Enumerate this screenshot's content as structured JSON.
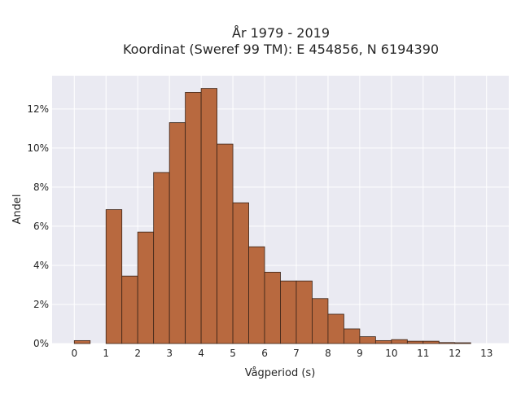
{
  "chart_data": {
    "type": "bar",
    "title": "År 1979 - 2019",
    "subtitle": "Koordinat (Sweref 99 TM): E 454856, N 6194390",
    "xlabel": "Vågperiod (s)",
    "ylabel": "Andel",
    "bin_width": 0.5,
    "x": [
      0,
      1,
      1.5,
      2,
      2.5,
      3,
      3.5,
      4,
      4.5,
      5,
      5.5,
      6,
      6.5,
      7,
      7.5,
      8,
      8.5,
      9,
      9.5,
      10,
      10.5,
      11,
      11.5,
      12
    ],
    "values": [
      0.15,
      6.85,
      3.45,
      5.7,
      8.75,
      11.3,
      12.85,
      13.05,
      10.2,
      7.2,
      4.95,
      3.65,
      3.2,
      3.2,
      2.3,
      1.5,
      0.75,
      0.35,
      0.15,
      0.2,
      0.12,
      0.12,
      0.05,
      0.04
    ],
    "xticks": [
      "0",
      "1",
      "2",
      "3",
      "4",
      "5",
      "6",
      "7",
      "8",
      "9",
      "10",
      "11",
      "12",
      "13"
    ],
    "yticks": [
      "0%",
      "2%",
      "4%",
      "6%",
      "8%",
      "10%",
      "12%"
    ],
    "xlim": [
      -0.7,
      13.7
    ],
    "ylim": [
      0,
      13.7
    ],
    "grid": true,
    "colors": {
      "bar_fill": "#b8693f",
      "bar_edge": "#3a2418",
      "plot_bg": "#eaeaf2",
      "grid": "#ffffff"
    }
  }
}
